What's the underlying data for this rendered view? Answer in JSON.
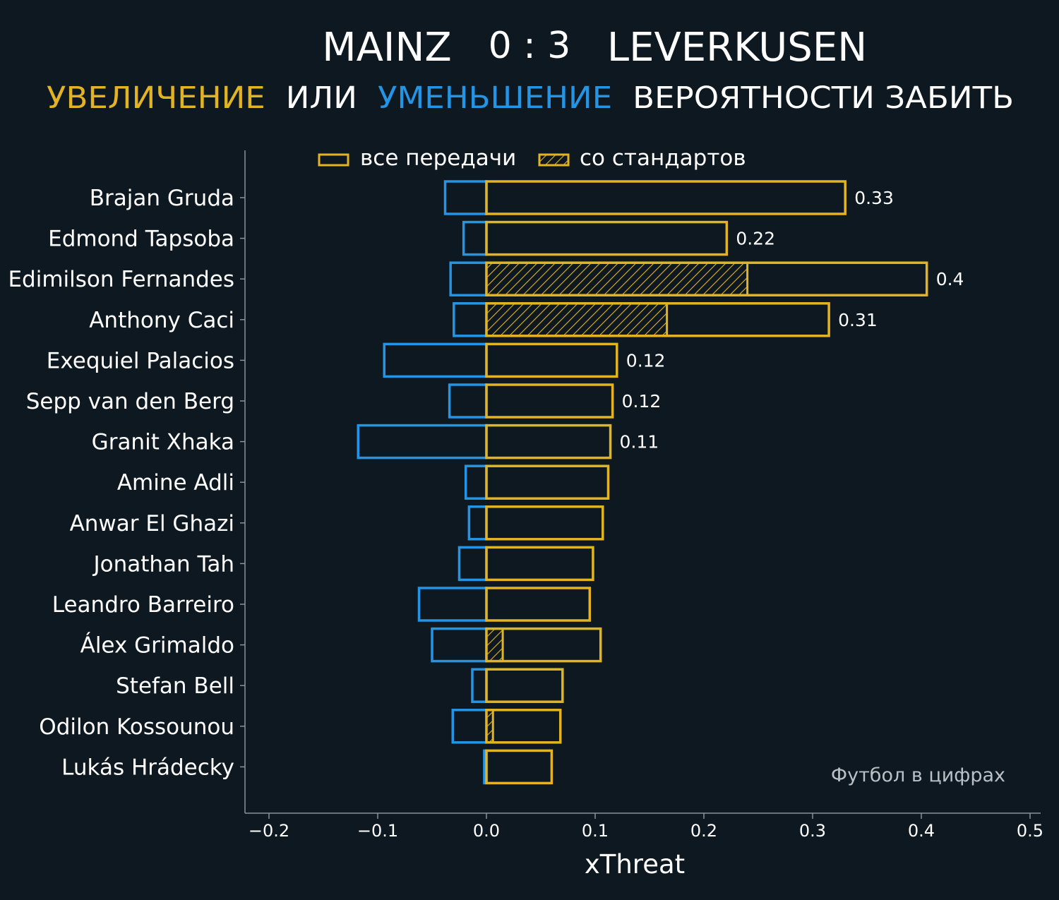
{
  "colors": {
    "background": "#0e1821",
    "increase": "#e2b424",
    "decrease": "#2494e4",
    "text": "#ffffff",
    "axis": "#8a939b",
    "watermark": "#b9c0c6"
  },
  "header": {
    "home_team": "MAINZ",
    "score": "0 : 3",
    "away_team": "LEVERKUSEN",
    "subtitle_increase": "УВЕЛИЧЕНИЕ",
    "subtitle_or": "ИЛИ",
    "subtitle_decrease": "УМЕНЬШЕНИЕ",
    "subtitle_rest": "ВЕРОЯТНОСТИ ЗАБИТЬ"
  },
  "watermark": "Футбол в цифрах",
  "chart_data": {
    "type": "bar",
    "orientation": "horizontal",
    "title": "",
    "xlabel": "xThreat",
    "ylabel": "",
    "xlim": [
      -0.22,
      0.51
    ],
    "xticks": [
      -0.2,
      -0.1,
      0.0,
      0.1,
      0.2,
      0.3,
      0.4,
      0.5
    ],
    "xtick_labels": [
      "−0.2",
      "−0.1",
      "0.0",
      "0.1",
      "0.2",
      "0.3",
      "0.4",
      "0.5"
    ],
    "grid": false,
    "legend": {
      "placement": "top-center",
      "entries": [
        {
          "label": "все передачи",
          "style": "outline"
        },
        {
          "label": "со стандартов",
          "style": "hatched"
        }
      ]
    },
    "categories": [
      "Brajan Gruda",
      "Edmond Tapsoba",
      "Edimilson Fernandes",
      "Anthony Caci",
      "Exequiel Palacios",
      "Sepp van den Berg",
      "Granit Xhaka",
      "Amine Adli",
      "Anwar El Ghazi",
      "Jonathan Tah",
      "Leandro Barreiro",
      "Álex Grimaldo",
      "Stefan Bell",
      "Odilon Kossounou",
      "Lukás Hrádecky"
    ],
    "series": [
      {
        "name": "все передачи",
        "values": [
          0.33,
          0.221,
          0.405,
          0.315,
          0.12,
          0.116,
          0.114,
          0.112,
          0.107,
          0.098,
          0.095,
          0.105,
          0.07,
          0.068,
          0.06
        ]
      },
      {
        "values": [
          -0.038,
          -0.021,
          -0.033,
          -0.03,
          -0.094,
          -0.034,
          -0.118,
          -0.019,
          -0.016,
          -0.025,
          -0.062,
          -0.05,
          -0.013,
          -0.031,
          -0.002
        ]
      },
      {
        "name": "со стандартов",
        "values": [
          0,
          0,
          0.24,
          0.166,
          0,
          0,
          0,
          0,
          0,
          0,
          0,
          0.015,
          0,
          0.006,
          0
        ]
      }
    ],
    "data_labels": [
      "0.33",
      "0.22",
      "0.4",
      "0.31",
      "0.12",
      "0.12",
      "0.11",
      "",
      "",
      "",
      "",
      "",
      "",
      "",
      ""
    ]
  }
}
